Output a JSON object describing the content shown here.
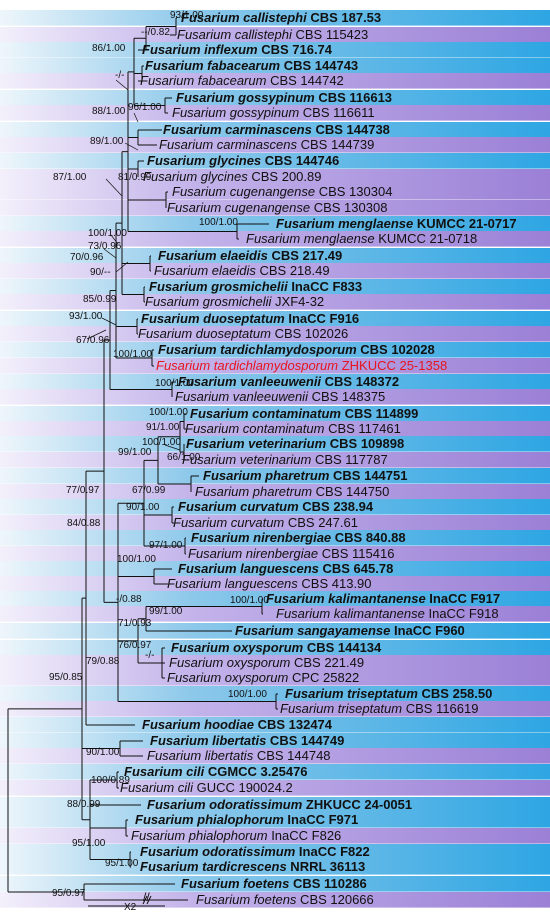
{
  "taxa": [
    {
      "species": "Fusarium callistephi",
      "strain": "CBS 187.53",
      "bold": true
    },
    {
      "species": "Fusarium callistephi",
      "strain": "CBS 115423",
      "bold": false
    },
    {
      "species": "Fusarium inflexum",
      "strain": "CBS 716.74",
      "bold": true
    },
    {
      "species": "Fusarium fabacearum",
      "strain": "CBS 144743",
      "bold": true
    },
    {
      "species": "Fusarium fabacearum",
      "strain": "CBS 144742",
      "bold": false
    },
    {
      "species": "Fusarium gossypinum",
      "strain": "CBS 116613",
      "bold": true
    },
    {
      "species": "Fusarium gossypinum",
      "strain": "CBS 116611",
      "bold": false
    },
    {
      "species": "Fusarium carminascens",
      "strain": "CBS 144738",
      "bold": true
    },
    {
      "species": "Fusarium carminascens",
      "strain": "CBS 144739",
      "bold": false
    },
    {
      "species": "Fusarium glycines",
      "strain": "CBS 144746",
      "bold": true
    },
    {
      "species": "Fusarium glycines",
      "strain": "CBS 200.89",
      "bold": false
    },
    {
      "species": "Fusarium cugenangense",
      "strain": "CBS 130304",
      "bold": false
    },
    {
      "species": "Fusarium cugenangense",
      "strain": "CBS 130308",
      "bold": false
    },
    {
      "species": "Fusarium menglaense",
      "strain": "KUMCC 21-0717",
      "bold": true
    },
    {
      "species": "Fusarium menglaense",
      "strain": "KUMCC 21-0718",
      "bold": false
    },
    {
      "species": "Fusarium elaeidis",
      "strain": "CBS 217.49",
      "bold": true
    },
    {
      "species": "Fusarium elaeidis",
      "strain": "CBS 218.49",
      "bold": false
    },
    {
      "species": "Fusarium grosmichelii",
      "strain": "InaCC F833",
      "bold": true
    },
    {
      "species": "Fusarium grosmichelii",
      "strain": "JXF4-32",
      "bold": false
    },
    {
      "species": "Fusarium duoseptatum",
      "strain": "InaCC F916",
      "bold": true
    },
    {
      "species": "Fusarium duoseptatum",
      "strain": "CBS 102026",
      "bold": false
    },
    {
      "species": "Fusarium tardichlamydosporum",
      "strain": "CBS 102028",
      "bold": true
    },
    {
      "species": "Fusarium tardichlamydosporum",
      "strain": "ZHKUCC 25-1358",
      "bold": false,
      "new": true
    },
    {
      "species": "Fusarium vanleeuwenii",
      "strain": "CBS 148372",
      "bold": true
    },
    {
      "species": "Fusarium vanleeuwenii",
      "strain": "CBS 148375",
      "bold": false
    },
    {
      "species": "Fusarium contaminatum",
      "strain": "CBS 114899",
      "bold": true
    },
    {
      "species": "Fusarium contaminatum",
      "strain": "CBS 117461",
      "bold": false
    },
    {
      "species": "Fusarium veterinarium",
      "strain": "CBS 109898",
      "bold": true
    },
    {
      "species": "Fusarium veterinarium",
      "strain": "CBS 117787",
      "bold": false
    },
    {
      "species": "Fusarium pharetrum",
      "strain": "CBS 144751",
      "bold": true
    },
    {
      "species": "Fusarium pharetrum",
      "strain": "CBS 144750",
      "bold": false
    },
    {
      "species": "Fusarium curvatum",
      "strain": "CBS 238.94",
      "bold": true
    },
    {
      "species": "Fusarium curvatum",
      "strain": "CBS 247.61",
      "bold": false
    },
    {
      "species": "Fusarium nirenbergiae",
      "strain": "CBS 840.88",
      "bold": true
    },
    {
      "species": "Fusarium nirenbergiae",
      "strain": "CBS 115416",
      "bold": false
    },
    {
      "species": "Fusarium languescens",
      "strain": "CBS 645.78",
      "bold": true
    },
    {
      "species": "Fusarium languescens",
      "strain": "CBS 413.90",
      "bold": false
    },
    {
      "species": "Fusarium kalimantanense",
      "strain": "InaCC F917",
      "bold": true
    },
    {
      "species": "Fusarium kalimantanense",
      "strain": "InaCC F918",
      "bold": false
    },
    {
      "species": "Fusarium sangayamense",
      "strain": "InaCC F960",
      "bold": true
    },
    {
      "species": "Fusarium oxysporum",
      "strain": "CBS 144134",
      "bold": true
    },
    {
      "species": "Fusarium oxysporum",
      "strain": "CBS 221.49",
      "bold": false
    },
    {
      "species": "Fusarium oxysporum",
      "strain": "CPC 25822",
      "bold": false
    },
    {
      "species": "Fusarium triseptatum",
      "strain": "CBS 258.50",
      "bold": true
    },
    {
      "species": "Fusarium triseptatum",
      "strain": "CBS 116619",
      "bold": false
    },
    {
      "species": "Fusarium hoodiae",
      "strain": "CBS 132474",
      "bold": true
    },
    {
      "species": "Fusarium libertatis",
      "strain": "CBS 144749",
      "bold": true
    },
    {
      "species": "Fusarium libertatis",
      "strain": "CBS 144748",
      "bold": false
    },
    {
      "species": "Fusarium cili",
      "strain": "CGMCC 3.25476",
      "bold": true
    },
    {
      "species": "Fusarium cili",
      "strain": "GUCC 190024.2",
      "bold": false
    },
    {
      "species": "Fusarium odoratissimum",
      "strain": "ZHKUCC 24-0051",
      "bold": true
    },
    {
      "species": "Fusarium phialophorum",
      "strain": "InaCC F971",
      "bold": true
    },
    {
      "species": "Fusarium phialophorum",
      "strain": "InaCC F826",
      "bold": false
    },
    {
      "species": "Fusarium odoratissimum",
      "strain": "InaCC F822",
      "bold": true
    },
    {
      "species": "Fusarium tardicrescens",
      "strain": "NRRL 36113",
      "bold": true
    },
    {
      "species": "Fusarium foetens",
      "strain": "CBS 110286",
      "bold": true
    },
    {
      "species": "Fusarium foetens",
      "strain": "CBS 120666",
      "bold": false
    }
  ],
  "supports": [
    "93/1.00",
    "--/0.82",
    "86/1.00",
    "-/-",
    "96/1.00",
    "88/1.00",
    "89/1.00",
    "81/0.99",
    "87/1.00",
    "100/1.00",
    "100/1.00",
    "73/0.96",
    "70/0.96",
    "90/--",
    "85/0.99",
    "93/1.00",
    "67/0.96",
    "100/1.00",
    "100/1.00",
    "100/1.00",
    "91/1.00",
    "100/1.00",
    "99/1.00",
    "66/1.00",
    "77/0.97",
    "67/0.99",
    "90/1.00",
    "97/1.00",
    "84/0.88",
    "100/1.00",
    "-/0.88",
    "100/1.00",
    "99/1.00",
    "71/0.93",
    "76/0.97",
    "-/-",
    "79/0.88",
    "100/1.00",
    "95/0.85",
    "90/1.00",
    "100/0.89",
    "88/0.99",
    "95/1.00",
    "95/1.00",
    "95/0.97"
  ],
  "scale_label": "X2",
  "break_mark": "//",
  "colors": {
    "bold_band": "#2ea6e3",
    "plain_band": "#9b80d6",
    "band_edge": "#ffffff",
    "new_record": "#e8141e",
    "line": "#111111"
  }
}
